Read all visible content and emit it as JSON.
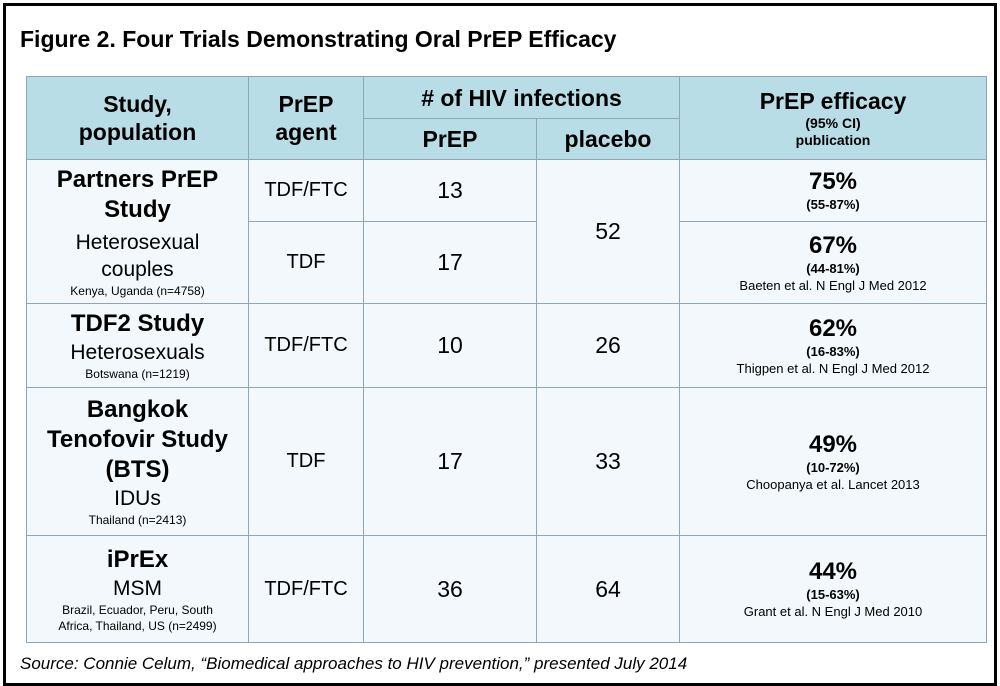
{
  "title": "Figure 2. Four Trials Demonstrating Oral PrEP Efficacy",
  "headers": {
    "study": [
      "Study,",
      "population"
    ],
    "agent": [
      "PrEP",
      "agent"
    ],
    "infections": "# of HIV infections",
    "prep": "PrEP",
    "placebo": "placebo",
    "efficacy": "PrEP efficacy",
    "ci": "(95% CI)",
    "publication": "publication"
  },
  "rows": {
    "partners": {
      "name": [
        "Partners PrEP",
        "Study"
      ],
      "population": [
        "Heterosexual",
        "couples"
      ],
      "location": "Kenya, Uganda (n=4758)",
      "placebo": "52",
      "arms": [
        {
          "agent": "TDF/FTC",
          "prep": "13",
          "efficacy": "75%",
          "ci": "(55-87%)",
          "publication": ""
        },
        {
          "agent": "TDF",
          "prep": "17",
          "efficacy": "67%",
          "ci": "(44-81%)",
          "publication": "Baeten et al. N Engl J Med 2012"
        }
      ]
    },
    "tdf2": {
      "name": "TDF2 Study",
      "population": "Heterosexuals",
      "location": "Botswana (n=1219)",
      "agent": "TDF/FTC",
      "prep": "10",
      "placebo": "26",
      "efficacy": "62%",
      "ci": "(16-83%)",
      "publication": "Thigpen et al. N Engl J Med 2012"
    },
    "bts": {
      "name": [
        "Bangkok",
        "Tenofovir Study",
        "(BTS)"
      ],
      "population": "IDUs",
      "location": "Thailand (n=2413)",
      "agent": "TDF",
      "prep": "17",
      "placebo": "33",
      "efficacy": "49%",
      "ci": "(10-72%)",
      "publication": "Choopanya et al. Lancet 2013"
    },
    "iprex": {
      "name": "iPrEx",
      "population": "MSM",
      "location": [
        "Brazil, Ecuador, Peru, South",
        "Africa, Thailand, US (n=2499)"
      ],
      "agent": "TDF/FTC",
      "prep": "36",
      "placebo": "64",
      "efficacy": "44%",
      "ci": "(15-63%)",
      "publication": "Grant et al. N Engl J Med 2010"
    }
  },
  "source": "Source: Connie Celum, “Biomedical approaches to HIV prevention,” presented July 2014",
  "colors": {
    "header_bg": "#b8dde6",
    "body_bg": "#f2f8fb",
    "grid": "#8fa6b8"
  }
}
